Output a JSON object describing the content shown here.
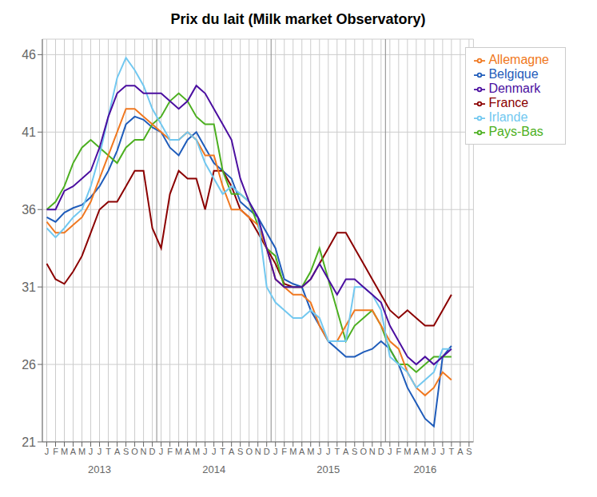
{
  "chart_data": {
    "type": "line",
    "title": "Prix du lait (Milk market Observatory)",
    "categories": [
      "J",
      "F",
      "M",
      "A",
      "M",
      "J",
      "J",
      "T",
      "A",
      "S",
      "O",
      "N",
      "D",
      "J",
      "F",
      "M",
      "A",
      "M",
      "J",
      "J",
      "T",
      "A",
      "S",
      "O",
      "N",
      "D",
      "J",
      "F",
      "M",
      "A",
      "M",
      "J",
      "J",
      "T",
      "A",
      "S",
      "O",
      "N",
      "D",
      "J",
      "F",
      "M",
      "A",
      "M",
      "J",
      "J",
      "T",
      "A",
      "S"
    ],
    "series": [
      {
        "name": "Belgique",
        "color": "#1f5cba",
        "values": [
          35.5,
          35.2,
          35.8,
          36.1,
          36.3,
          36.8,
          37.5,
          38.5,
          39.8,
          41.5,
          42.0,
          41.8,
          41.3,
          41.0,
          40.0,
          39.5,
          40.5,
          41.0,
          40.0,
          39.0,
          38.5,
          38.0,
          36.5,
          36.0,
          35.5,
          34.5,
          33.5,
          31.5,
          31.2,
          31.0,
          29.5,
          28.5,
          27.5,
          27.0,
          26.5,
          26.5,
          26.8,
          27.0,
          27.5,
          27.0,
          26.0,
          24.5,
          23.5,
          22.5,
          22.0,
          26.5,
          27.2,
          null,
          null
        ]
      },
      {
        "name": "France",
        "color": "#8b0000",
        "values": [
          32.5,
          31.5,
          31.2,
          32.0,
          33.0,
          34.5,
          36.0,
          36.5,
          36.5,
          37.5,
          38.5,
          38.5,
          34.8,
          33.5,
          37.0,
          38.5,
          38.0,
          38.0,
          36.0,
          38.5,
          38.5,
          37.5,
          36.0,
          35.5,
          34.5,
          33.5,
          32.5,
          31.2,
          31.0,
          31.0,
          31.5,
          32.5,
          33.5,
          34.5,
          34.5,
          33.5,
          32.5,
          31.5,
          30.5,
          29.5,
          29.0,
          29.5,
          29.0,
          28.5,
          28.5,
          29.5,
          30.5,
          null,
          null
        ]
      },
      {
        "name": "Pays-Bas",
        "color": "#4caf20",
        "values": [
          36.0,
          36.5,
          37.5,
          39.0,
          40.0,
          40.5,
          40.0,
          39.5,
          39.0,
          40.0,
          40.5,
          40.5,
          41.5,
          42.0,
          43.0,
          43.5,
          43.0,
          42.0,
          41.5,
          41.5,
          38.5,
          37.0,
          37.0,
          36.5,
          35.0,
          33.5,
          33.0,
          31.0,
          31.0,
          31.0,
          32.0,
          33.5,
          31.5,
          29.5,
          27.5,
          28.5,
          29.0,
          29.5,
          28.5,
          27.0,
          26.0,
          26.0,
          25.5,
          26.0,
          26.5,
          26.5,
          26.5,
          null,
          null
        ]
      },
      {
        "name": "Allemagne",
        "color": "#f07820",
        "values": [
          35.2,
          34.5,
          34.5,
          35.0,
          35.5,
          36.5,
          38.0,
          39.5,
          41.0,
          42.5,
          42.5,
          42.0,
          41.5,
          41.0,
          40.5,
          40.5,
          41.0,
          40.5,
          39.5,
          39.5,
          37.5,
          36.0,
          36.0,
          35.5,
          35.0,
          33.5,
          31.5,
          31.0,
          30.5,
          30.5,
          30.0,
          28.5,
          27.5,
          27.5,
          28.5,
          29.5,
          29.5,
          29.5,
          28.5,
          27.5,
          27.0,
          25.5,
          24.5,
          24.0,
          24.5,
          25.5,
          25.0,
          null,
          null
        ]
      },
      {
        "name": "Irlande",
        "color": "#72c8f0",
        "values": [
          34.8,
          34.2,
          34.8,
          35.5,
          36.0,
          37.5,
          39.5,
          42.0,
          44.5,
          45.8,
          45.0,
          44.0,
          42.5,
          41.5,
          40.5,
          40.5,
          41.0,
          40.5,
          39.0,
          38.0,
          37.0,
          37.5,
          37.0,
          36.5,
          35.5,
          31.0,
          30.0,
          29.5,
          29.0,
          29.0,
          29.5,
          29.0,
          27.5,
          27.5,
          27.5,
          31.0,
          31.0,
          30.5,
          29.5,
          26.5,
          26.0,
          25.5,
          24.5,
          25.0,
          25.5,
          27.0,
          27.0,
          null,
          null
        ]
      },
      {
        "name": "Denmark",
        "color": "#4b0fa0",
        "values": [
          36.0,
          36.0,
          37.2,
          37.5,
          38.0,
          38.5,
          40.0,
          42.0,
          43.5,
          44.0,
          44.0,
          43.5,
          43.5,
          43.5,
          43.0,
          42.5,
          43.0,
          44.0,
          43.5,
          42.5,
          41.5,
          40.5,
          38.0,
          36.5,
          35.5,
          33.5,
          31.5,
          31.0,
          31.0,
          31.0,
          31.5,
          32.5,
          31.5,
          30.5,
          31.5,
          31.5,
          31.0,
          30.5,
          30.0,
          28.5,
          27.5,
          26.5,
          26.0,
          26.5,
          26.0,
          26.5,
          27.0,
          null,
          null
        ]
      }
    ],
    "ylim": [
      21,
      47
    ],
    "yticks": [
      21,
      26,
      31,
      36,
      41,
      46
    ],
    "grid": true,
    "legend": "upper right",
    "annotations": [
      {
        "text": "2013",
        "x": 6
      },
      {
        "text": "2014",
        "x": 19
      },
      {
        "text": "2015",
        "x": 32
      },
      {
        "text": "2016",
        "x": 43
      }
    ],
    "vlines": [
      12.5,
      25.5,
      38.5
    ]
  }
}
